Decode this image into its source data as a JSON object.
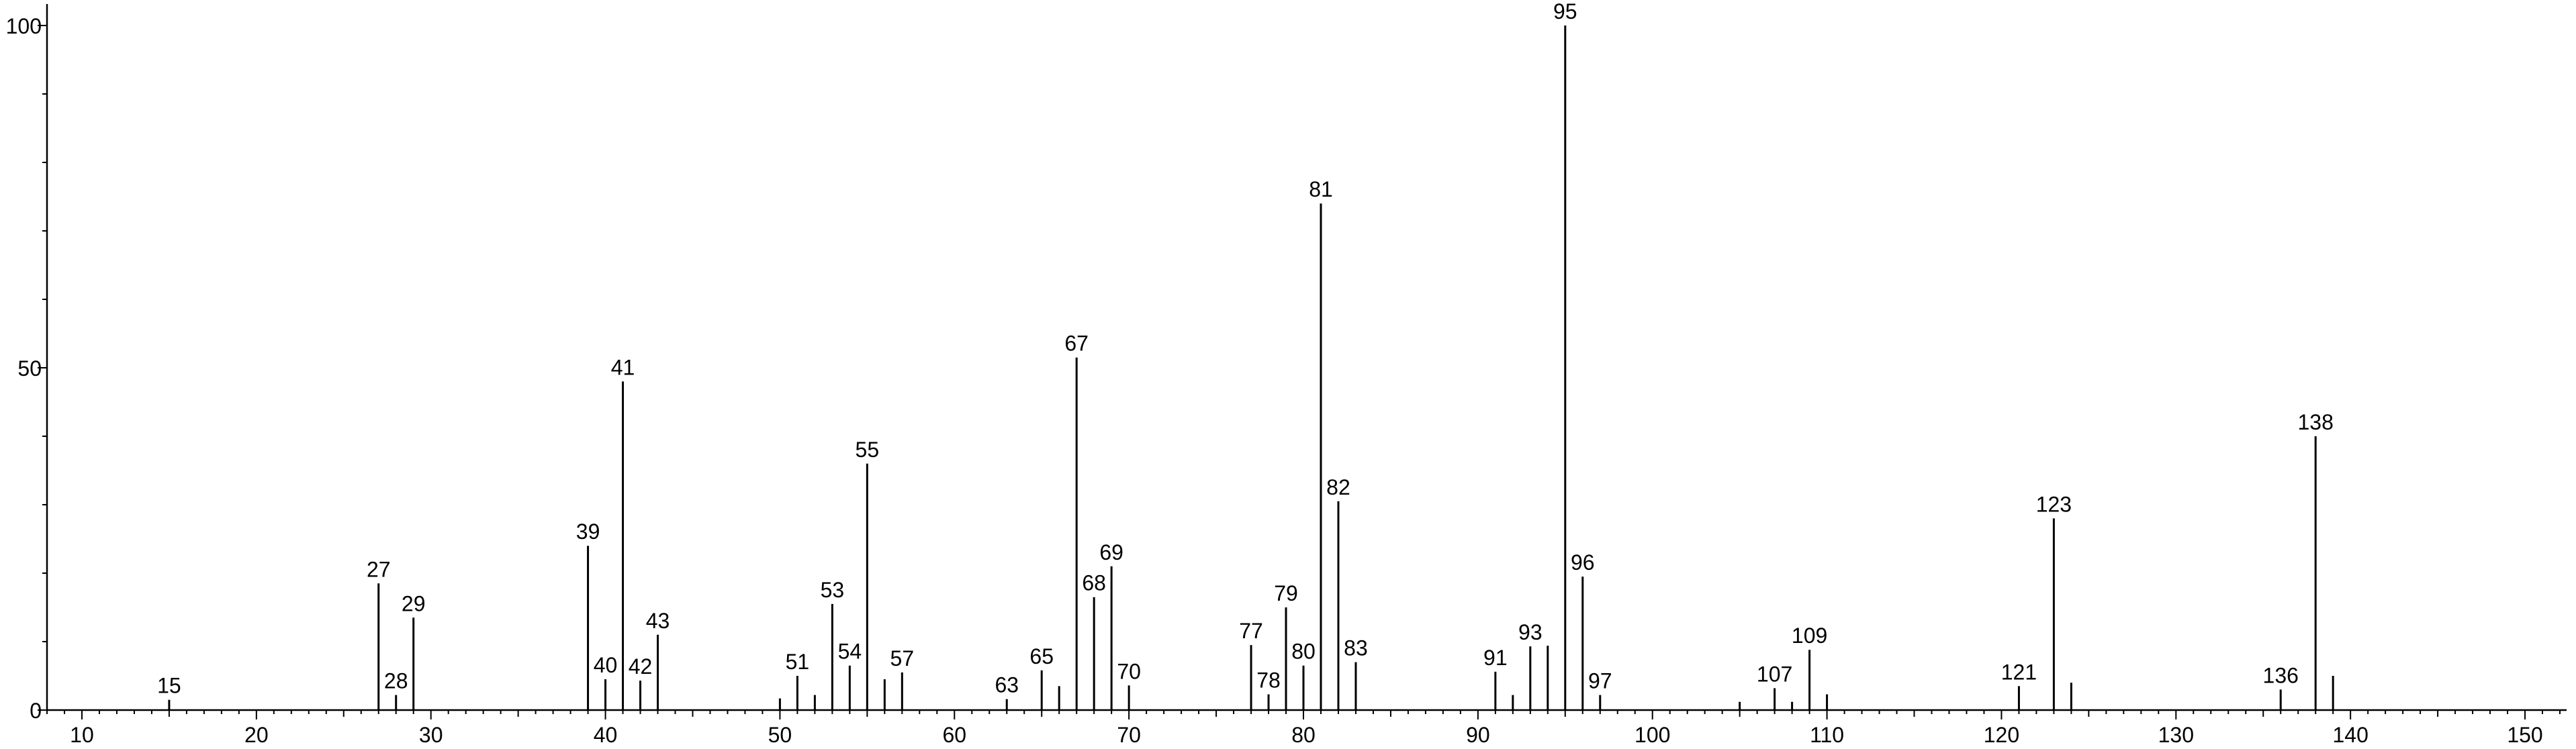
{
  "chart_data": {
    "type": "bar",
    "title": "",
    "xlabel": "",
    "ylabel": "",
    "xlim": [
      8,
      152
    ],
    "ylim": [
      0,
      100
    ],
    "x_ticks": [
      10,
      20,
      30,
      40,
      50,
      60,
      70,
      80,
      90,
      100,
      110,
      120,
      130,
      140,
      150
    ],
    "y_ticks": [
      0,
      50,
      100
    ],
    "grid": false,
    "peaks": [
      {
        "mz": 15,
        "intensity": 1.5,
        "label": "15"
      },
      {
        "mz": 27,
        "intensity": 18.5,
        "label": "27"
      },
      {
        "mz": 28,
        "intensity": 2.2,
        "label": "28"
      },
      {
        "mz": 29,
        "intensity": 13.5,
        "label": "29"
      },
      {
        "mz": 39,
        "intensity": 24,
        "label": "39"
      },
      {
        "mz": 40,
        "intensity": 4.5,
        "label": "40"
      },
      {
        "mz": 41,
        "intensity": 48,
        "label": "41"
      },
      {
        "mz": 42,
        "intensity": 4.3,
        "label": "42"
      },
      {
        "mz": 43,
        "intensity": 11,
        "label": "43"
      },
      {
        "mz": 50,
        "intensity": 1.7
      },
      {
        "mz": 51,
        "intensity": 5,
        "label": "51"
      },
      {
        "mz": 52,
        "intensity": 2.2
      },
      {
        "mz": 53,
        "intensity": 15.5,
        "label": "53"
      },
      {
        "mz": 54,
        "intensity": 6.5,
        "label": "54"
      },
      {
        "mz": 55,
        "intensity": 36,
        "label": "55"
      },
      {
        "mz": 56,
        "intensity": 4.5
      },
      {
        "mz": 57,
        "intensity": 5.5,
        "label": "57"
      },
      {
        "mz": 63,
        "intensity": 1.6,
        "label": "63"
      },
      {
        "mz": 65,
        "intensity": 5.8,
        "label": "65"
      },
      {
        "mz": 66,
        "intensity": 3.5
      },
      {
        "mz": 67,
        "intensity": 51.5,
        "label": "67"
      },
      {
        "mz": 68,
        "intensity": 16.5,
        "label": "68"
      },
      {
        "mz": 69,
        "intensity": 21,
        "label": "69"
      },
      {
        "mz": 70,
        "intensity": 3.6,
        "label": "70"
      },
      {
        "mz": 77,
        "intensity": 9.5,
        "label": "77"
      },
      {
        "mz": 78,
        "intensity": 2.3,
        "label": "78"
      },
      {
        "mz": 79,
        "intensity": 15,
        "label": "79"
      },
      {
        "mz": 80,
        "intensity": 6.5,
        "label": "80"
      },
      {
        "mz": 81,
        "intensity": 74,
        "label": "81"
      },
      {
        "mz": 82,
        "intensity": 30.5,
        "label": "82"
      },
      {
        "mz": 83,
        "intensity": 7,
        "label": "83"
      },
      {
        "mz": 91,
        "intensity": 5.6,
        "label": "91"
      },
      {
        "mz": 92,
        "intensity": 2.2
      },
      {
        "mz": 93,
        "intensity": 9.3,
        "label": "93"
      },
      {
        "mz": 94,
        "intensity": 9.4
      },
      {
        "mz": 95,
        "intensity": 100,
        "label": "95"
      },
      {
        "mz": 96,
        "intensity": 19.5,
        "label": "96"
      },
      {
        "mz": 97,
        "intensity": 2.2,
        "label": "97"
      },
      {
        "mz": 105,
        "intensity": 1.2
      },
      {
        "mz": 107,
        "intensity": 3.2,
        "label": "107"
      },
      {
        "mz": 108,
        "intensity": 1.2
      },
      {
        "mz": 109,
        "intensity": 8.8,
        "label": "109"
      },
      {
        "mz": 110,
        "intensity": 2.3
      },
      {
        "mz": 121,
        "intensity": 3.5,
        "label": "121"
      },
      {
        "mz": 123,
        "intensity": 28,
        "label": "123"
      },
      {
        "mz": 124,
        "intensity": 4
      },
      {
        "mz": 136,
        "intensity": 3,
        "label": "136"
      },
      {
        "mz": 138,
        "intensity": 40,
        "label": "138"
      },
      {
        "mz": 139,
        "intensity": 5
      }
    ]
  }
}
